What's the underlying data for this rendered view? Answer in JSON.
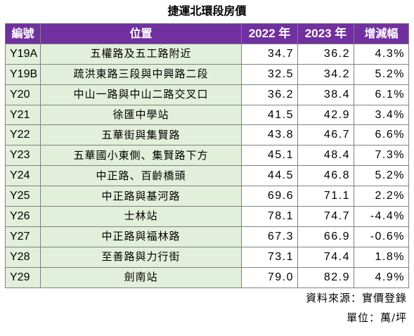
{
  "title": "捷運北環段房價",
  "header": {
    "code": "編號",
    "location": "位置",
    "y2022": "2022 年",
    "y2023": "2023 年",
    "change": "增減幅"
  },
  "rows": [
    {
      "code": "Y19A",
      "location": "五權路及五工路附近",
      "y2022": "34.7",
      "y2023": "36.2",
      "change": "4.3%"
    },
    {
      "code": "Y19B",
      "location": "疏洪東路三段與中興路二段",
      "y2022": "32.5",
      "y2023": "34.2",
      "change": "5.2%"
    },
    {
      "code": "Y20",
      "location": "中山一路與中山二路交叉口",
      "y2022": "36.2",
      "y2023": "38.4",
      "change": "6.1%"
    },
    {
      "code": "Y21",
      "location": "徐匯中學站",
      "y2022": "41.5",
      "y2023": "42.9",
      "change": "3.4%"
    },
    {
      "code": "Y22",
      "location": "五華街與集賢路",
      "y2022": "43.8",
      "y2023": "46.7",
      "change": "6.6%"
    },
    {
      "code": "Y23",
      "location": "五華國小東側、集賢路下方",
      "y2022": "45.1",
      "y2023": "48.4",
      "change": "7.3%"
    },
    {
      "code": "Y24",
      "location": "中正路、百齡橋頭",
      "y2022": "44.5",
      "y2023": "46.8",
      "change": "5.2%"
    },
    {
      "code": "Y25",
      "location": "中正路與基河路",
      "y2022": "69.6",
      "y2023": "71.1",
      "change": "2.2%"
    },
    {
      "code": "Y26",
      "location": "士林站",
      "y2022": "78.1",
      "y2023": "74.7",
      "change": "-4.4%"
    },
    {
      "code": "Y27",
      "location": "中正路與福林路",
      "y2022": "67.3",
      "y2023": "66.9",
      "change": "-0.6%"
    },
    {
      "code": "Y28",
      "location": "至善路與力行街",
      "y2022": "73.1",
      "y2023": "74.4",
      "change": "1.8%"
    },
    {
      "code": "Y29",
      "location": "劍南站",
      "y2022": "79.0",
      "y2023": "82.9",
      "change": "4.9%"
    }
  ],
  "source": "資料來源：實價登錄",
  "unit": "單位：萬/坪",
  "colors": {
    "header_bg": "#7030a0",
    "row_bg": "#e2efda",
    "value_bg": "#ffffff"
  }
}
